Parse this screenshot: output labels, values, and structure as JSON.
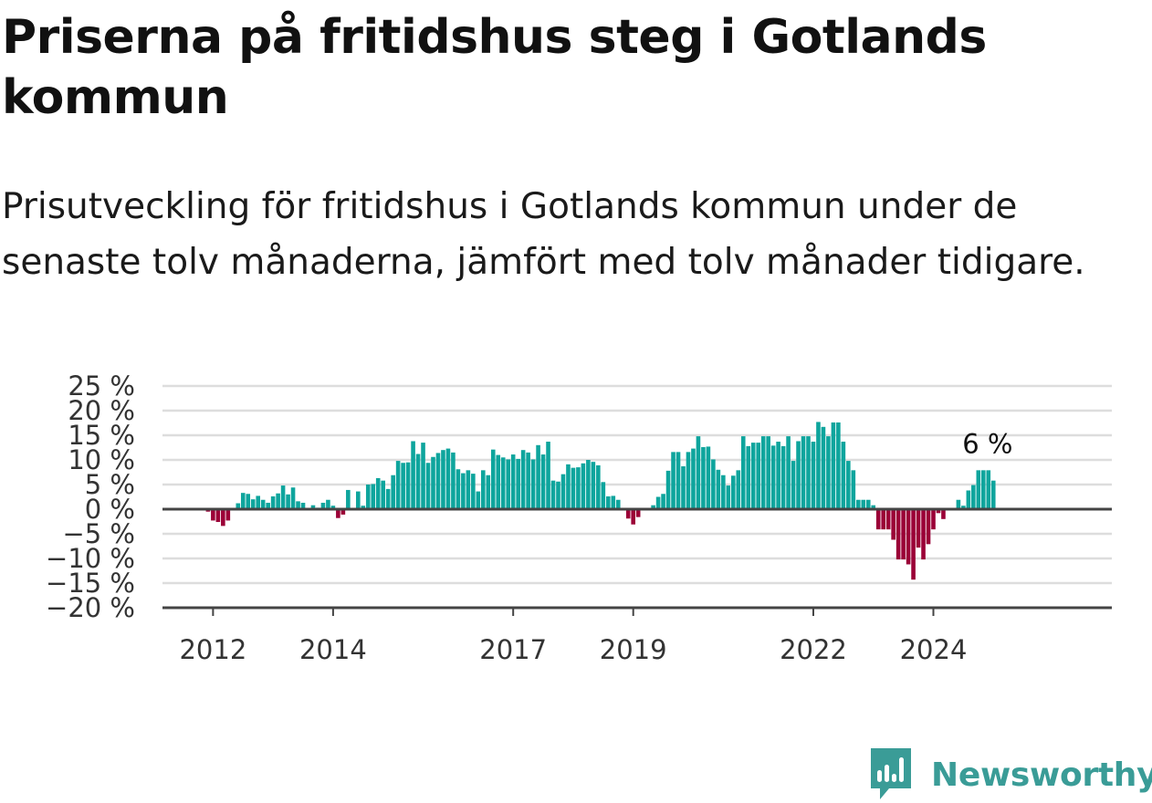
{
  "title": "Priserna på fritidshus steg i Gotlands kommun",
  "subtitle": "Prisutveckling för fritidshus i Gotlands kommun under de senaste tolv månaderna, jämfört med tolv månader tidigare.",
  "brand": {
    "name": "Newsworthy",
    "icon": "newsworthy-logo-icon"
  },
  "colors": {
    "positive": "#0ea59d",
    "negative": "#9b0037",
    "grid": "#dddddd",
    "axis": "#444444",
    "brand": "#3a9c97"
  },
  "chart_data": {
    "type": "bar",
    "x_start": "2011-12",
    "interval": "month",
    "y_ticks": [
      "25 %",
      "20 %",
      "15 %",
      "10 %",
      "5 %",
      "0 %",
      "−5 %",
      "−10 %",
      "−15 %",
      "−20 %"
    ],
    "ylim": [
      -20,
      25
    ],
    "x_ticks": [
      {
        "label": "2012",
        "date": "2012-01"
      },
      {
        "label": "2014",
        "date": "2014-01"
      },
      {
        "label": "2017",
        "date": "2017-01"
      },
      {
        "label": "2019",
        "date": "2019-01"
      },
      {
        "label": "2022",
        "date": "2022-01"
      },
      {
        "label": "2024",
        "date": "2024-01"
      }
    ],
    "last_value_label": "6 %",
    "grid": true,
    "values": [
      -0.5,
      -2.3,
      -2.6,
      -3.4,
      -2.3,
      0.0,
      1.2,
      3.3,
      3.1,
      2.0,
      2.7,
      1.9,
      1.3,
      2.6,
      3.2,
      4.8,
      3.0,
      4.4,
      1.6,
      1.3,
      0.1,
      0.8,
      0.3,
      1.3,
      1.9,
      0.7,
      -1.8,
      -1.1,
      3.9,
      0.0,
      3.6,
      0.7,
      5.0,
      5.1,
      6.3,
      5.8,
      4.1,
      6.9,
      9.8,
      9.4,
      9.5,
      13.8,
      11.2,
      13.5,
      9.4,
      10.6,
      11.4,
      12.0,
      12.3,
      11.5,
      8.1,
      7.3,
      7.9,
      7.2,
      3.6,
      7.9,
      6.9,
      12.1,
      11.0,
      10.5,
      10.1,
      11.1,
      10.2,
      12.0,
      11.5,
      10.1,
      13.0,
      11.1,
      13.7,
      5.8,
      5.6,
      7.1,
      9.1,
      8.4,
      8.5,
      9.3,
      10.0,
      9.6,
      8.9,
      5.5,
      2.6,
      2.7,
      1.9,
      0.0,
      -1.9,
      -3.1,
      -1.6,
      0.0,
      0.0,
      0.8,
      2.5,
      3.1,
      7.8,
      11.6,
      11.6,
      8.7,
      11.6,
      12.3,
      14.8,
      12.6,
      12.7,
      10.1,
      8.0,
      6.9,
      4.8,
      6.8,
      7.9,
      14.8,
      12.8,
      13.5,
      13.5,
      14.8,
      14.8,
      12.9,
      13.7,
      12.8,
      14.8,
      9.8,
      13.8,
      14.8,
      14.8,
      13.7,
      17.7,
      16.7,
      14.8,
      17.6,
      17.6,
      13.7,
      9.8,
      7.9,
      1.9,
      1.9,
      1.9,
      0.8,
      -4.1,
      -4.1,
      -4.1,
      -6.2,
      -10.2,
      -10.2,
      -11.2,
      -14.3,
      -7.8,
      -10.2,
      -7.1,
      -4.1,
      -0.8,
      -2.0,
      0.0,
      0.0,
      1.9,
      0.7,
      3.8,
      4.9,
      7.9,
      7.9,
      7.9,
      5.8
    ]
  }
}
